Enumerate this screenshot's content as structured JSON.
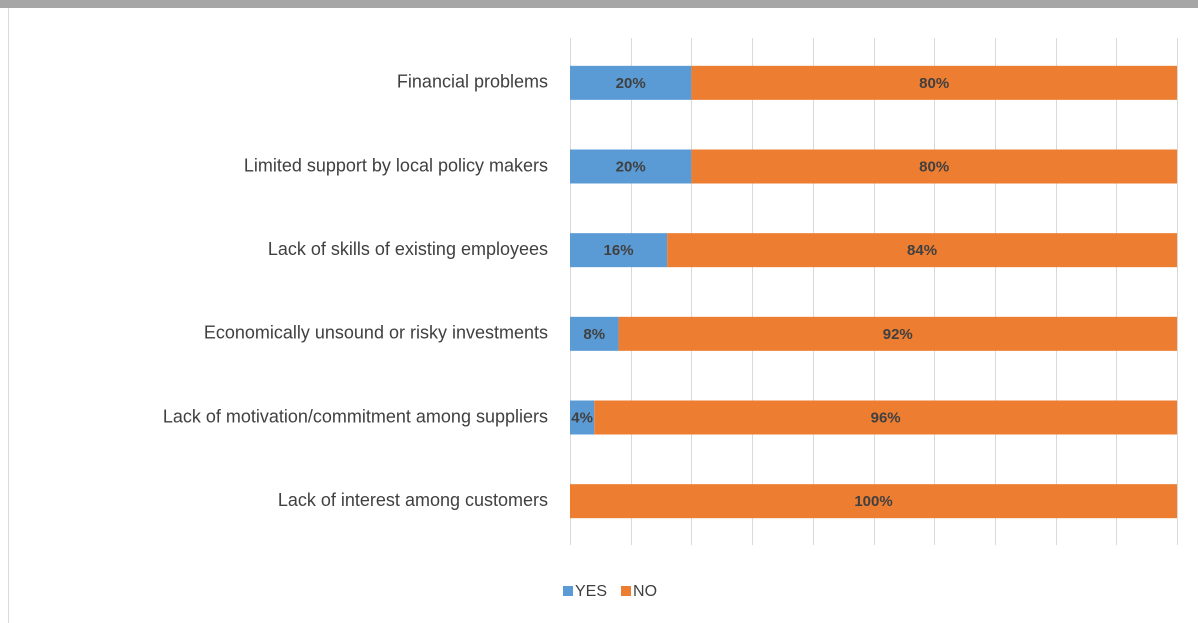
{
  "chart_data": {
    "type": "bar",
    "orientation": "horizontal",
    "stacked": true,
    "categories": [
      "Financial problems",
      "Limited support by local policy makers",
      "Lack of skills of existing employees",
      "Economically unsound or risky investments",
      "Lack of motivation/commitment among suppliers",
      "Lack of interest among customers"
    ],
    "series": [
      {
        "name": "YES",
        "color": "#5b9bd5",
        "values": [
          20,
          20,
          16,
          8,
          4,
          0
        ],
        "value_labels": [
          "20%",
          "20%",
          "16%",
          "8%",
          "4%",
          null
        ]
      },
      {
        "name": "NO",
        "color": "#ed7d31",
        "values": [
          80,
          80,
          84,
          92,
          96,
          100
        ],
        "value_labels": [
          "80%",
          "80%",
          "84%",
          "92%",
          "96%",
          "100%"
        ]
      }
    ],
    "xlim": [
      0,
      100
    ],
    "xticks": [
      0,
      10,
      20,
      30,
      40,
      50,
      60,
      70,
      80,
      90,
      100
    ],
    "grid": true,
    "legend": "bottom"
  }
}
